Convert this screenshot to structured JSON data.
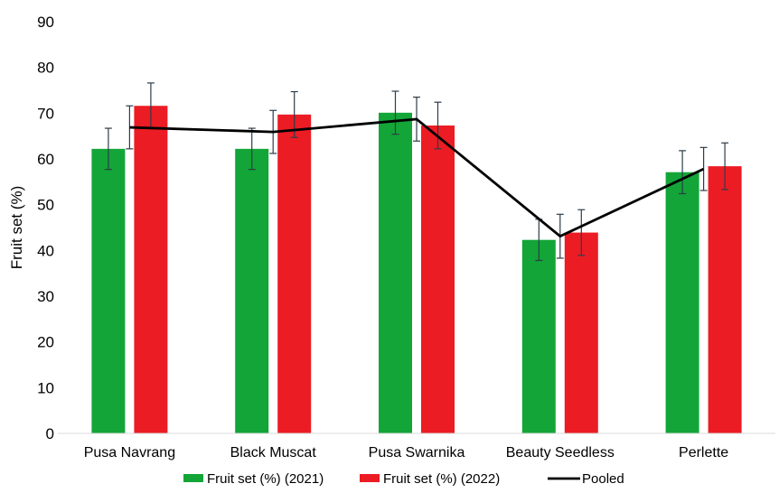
{
  "chart_data": {
    "type": "bar",
    "title": "",
    "xlabel": "",
    "ylabel": "Fruit set (%)",
    "ylim": [
      0,
      90
    ],
    "yticks": [
      0,
      10,
      20,
      30,
      40,
      50,
      60,
      70,
      80,
      90
    ],
    "grid": false,
    "legend_position": "bottom",
    "categories": [
      "Pusa Navrang",
      "Black Muscat",
      "Pusa Swarnika",
      "Beauty Seedless",
      "Perlette"
    ],
    "series": [
      {
        "name": "Fruit set (%) (2021)",
        "kind": "bar",
        "color": "#13a538",
        "values": [
          62.2,
          62.2,
          70.1,
          42.3,
          57.1
        ],
        "error": [
          4.5,
          4.5,
          4.7,
          4.5,
          4.7
        ]
      },
      {
        "name": "Fruit set (%) (2022)",
        "kind": "bar",
        "color": "#ec1c24",
        "values": [
          71.6,
          69.7,
          67.3,
          43.9,
          58.4
        ],
        "error": [
          5.0,
          5.0,
          5.1,
          5.0,
          5.1
        ]
      },
      {
        "name": "Pooled",
        "kind": "line",
        "color": "#000000",
        "values": [
          66.9,
          65.9,
          68.7,
          43.1,
          57.8
        ],
        "error": [
          4.7,
          4.7,
          4.8,
          4.8,
          4.7
        ]
      }
    ]
  }
}
